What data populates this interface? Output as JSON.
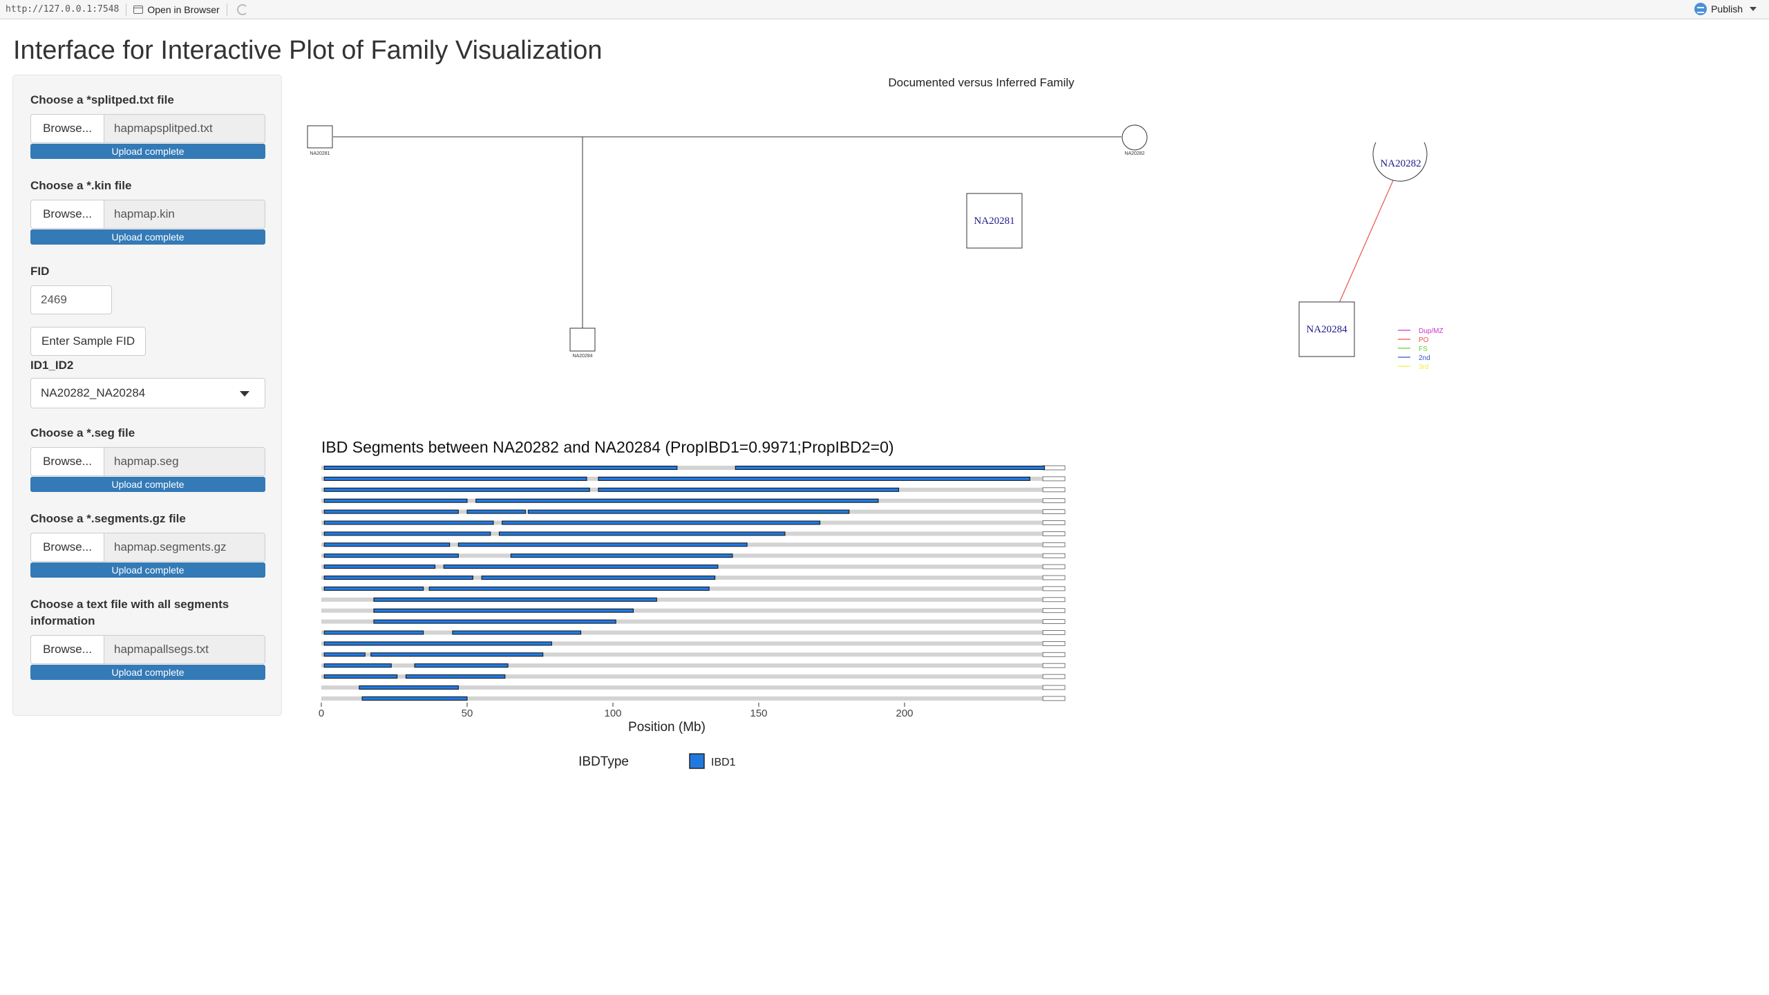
{
  "browser": {
    "url": "http://127.0.0.1:7548",
    "open_in_browser": "Open in Browser",
    "publish": "Publish"
  },
  "page_title": "Interface for Interactive Plot of Family Visualization",
  "sidebar": {
    "splitped": {
      "label": "Choose a *splitped.txt file",
      "browse": "Browse...",
      "filename": "hapmapsplitped.txt",
      "status": "Upload complete"
    },
    "kin": {
      "label": "Choose a *.kin file",
      "browse": "Browse...",
      "filename": "hapmap.kin",
      "status": "Upload complete"
    },
    "fid": {
      "label": "FID",
      "value": "2469",
      "button": "Enter Sample FID"
    },
    "id_select": {
      "label": "ID1_ID2",
      "value": "NA20282_NA20284"
    },
    "seg": {
      "label": "Choose a *.seg file",
      "browse": "Browse...",
      "filename": "hapmap.seg",
      "status": "Upload complete"
    },
    "segments_gz": {
      "label": "Choose a *.segments.gz file",
      "browse": "Browse...",
      "filename": "hapmap.segments.gz",
      "status": "Upload complete"
    },
    "allsegs": {
      "label": "Choose a text file with all segments information",
      "browse": "Browse...",
      "filename": "hapmapallsegs.txt",
      "status": "Upload complete"
    }
  },
  "pedigree": {
    "title": "Documented versus Inferred Family",
    "documented": {
      "father": "NA20281",
      "mother": "NA20282",
      "child": "NA20284"
    },
    "inferred": {
      "nodes": [
        "NA20281",
        "NA20282",
        "NA20284"
      ],
      "edge_color": "#e8524a",
      "legend": [
        {
          "label": "Dup/MZ",
          "color": "#cc33cc"
        },
        {
          "label": "PO",
          "color": "#e8524a"
        },
        {
          "label": "FS",
          "color": "#66cc33"
        },
        {
          "label": "2nd",
          "color": "#3355cc"
        },
        {
          "label": "3rd",
          "color": "#eeee44"
        }
      ]
    }
  },
  "chart_data": {
    "type": "bar",
    "title": "IBD Segments between NA20282 and NA20284 (PropIBD1=0.9971;PropIBD2=0)",
    "xlabel": "Position (Mb)",
    "ylabel": "",
    "xlim": [
      0,
      255
    ],
    "xticks": [
      0,
      50,
      100,
      150,
      200
    ],
    "legend_title": "IBDType",
    "legend": [
      {
        "name": "IBD1",
        "color": "#2179e0"
      }
    ],
    "chromosomes": [
      {
        "chr": 1,
        "length": 249,
        "segments": [
          [
            1,
            122
          ],
          [
            142,
            248
          ]
        ]
      },
      {
        "chr": 2,
        "length": 243,
        "segments": [
          [
            1,
            91
          ],
          [
            95,
            243
          ]
        ]
      },
      {
        "chr": 3,
        "length": 198,
        "segments": [
          [
            1,
            92
          ],
          [
            95,
            198
          ]
        ]
      },
      {
        "chr": 4,
        "length": 191,
        "segments": [
          [
            1,
            50
          ],
          [
            53,
            191
          ]
        ]
      },
      {
        "chr": 5,
        "length": 181,
        "segments": [
          [
            1,
            47
          ],
          [
            50,
            70
          ],
          [
            71,
            181
          ]
        ]
      },
      {
        "chr": 6,
        "length": 171,
        "segments": [
          [
            1,
            59
          ],
          [
            62,
            171
          ]
        ]
      },
      {
        "chr": 7,
        "length": 159,
        "segments": [
          [
            1,
            58
          ],
          [
            61,
            159
          ]
        ]
      },
      {
        "chr": 8,
        "length": 146,
        "segments": [
          [
            1,
            44
          ],
          [
            47,
            146
          ]
        ]
      },
      {
        "chr": 9,
        "length": 141,
        "segments": [
          [
            1,
            47
          ],
          [
            65,
            141
          ]
        ]
      },
      {
        "chr": 10,
        "length": 136,
        "segments": [
          [
            1,
            39
          ],
          [
            42,
            136
          ]
        ]
      },
      {
        "chr": 11,
        "length": 135,
        "segments": [
          [
            1,
            52
          ],
          [
            55,
            135
          ]
        ]
      },
      {
        "chr": 12,
        "length": 134,
        "segments": [
          [
            1,
            35
          ],
          [
            37,
            133
          ]
        ]
      },
      {
        "chr": 13,
        "length": 115,
        "segments": [
          [
            18,
            115
          ]
        ]
      },
      {
        "chr": 14,
        "length": 107,
        "segments": [
          [
            18,
            107
          ]
        ]
      },
      {
        "chr": 15,
        "length": 102,
        "segments": [
          [
            18,
            101
          ]
        ]
      },
      {
        "chr": 16,
        "length": 90,
        "segments": [
          [
            1,
            35
          ],
          [
            45,
            89
          ]
        ]
      },
      {
        "chr": 17,
        "length": 81,
        "segments": [
          [
            1,
            79
          ]
        ]
      },
      {
        "chr": 18,
        "length": 78,
        "segments": [
          [
            1,
            15
          ],
          [
            17,
            76
          ]
        ]
      },
      {
        "chr": 19,
        "length": 59,
        "segments": [
          [
            1,
            24
          ],
          [
            32,
            64
          ]
        ]
      },
      {
        "chr": 20,
        "length": 63,
        "segments": [
          [
            1,
            26
          ],
          [
            29,
            63
          ]
        ]
      },
      {
        "chr": 21,
        "length": 48,
        "segments": [
          [
            13,
            47
          ]
        ]
      },
      {
        "chr": 22,
        "length": 51,
        "segments": [
          [
            14,
            50
          ]
        ]
      }
    ]
  }
}
